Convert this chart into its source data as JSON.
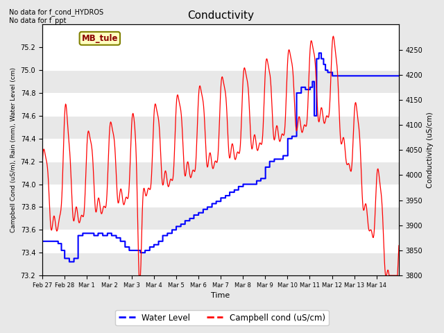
{
  "title": "Conductivity",
  "xlabel": "Time",
  "ylabel_left": "Campbell Cond (uS/m), Rain (mm), Water Level (cm)",
  "ylabel_right": "Conductivity (uS/cm)",
  "text_upper_left": "No data for f_cond_HYDROS\nNo data for f_ppt",
  "annotation_box": "MB_tule",
  "ylim_left": [
    73.2,
    75.4
  ],
  "ylim_right": [
    3800,
    4300
  ],
  "yticks_left": [
    73.2,
    73.4,
    73.6,
    73.8,
    74.0,
    74.2,
    74.4,
    74.6,
    74.8,
    75.0,
    75.2
  ],
  "yticks_right": [
    3800,
    3850,
    3900,
    3950,
    4000,
    4050,
    4100,
    4150,
    4200,
    4250
  ],
  "xtick_positions": [
    0,
    1,
    2,
    3,
    4,
    5,
    6,
    7,
    8,
    9,
    10,
    11,
    12,
    13,
    14,
    15
  ],
  "xtick_labels": [
    "Feb 27",
    "Feb 28",
    "Mar 1",
    "Mar 2",
    "Mar 3",
    "Mar 4",
    "Mar 5",
    "Mar 6",
    "Mar 7",
    "Mar 8",
    "Mar 9",
    "Mar 10",
    "Mar 11",
    "Mar 12",
    "Mar 13",
    "Mar 14"
  ],
  "legend_entries": [
    "Water Level",
    "Campbell cond (uS/cm)"
  ],
  "background_color": "#e8e8e8",
  "plot_bg_color": "#ffffff",
  "alt_band_color": "#e8e8e8",
  "grid_color": "#c8c8c8",
  "note_fontsize": 8,
  "title_fontsize": 11
}
